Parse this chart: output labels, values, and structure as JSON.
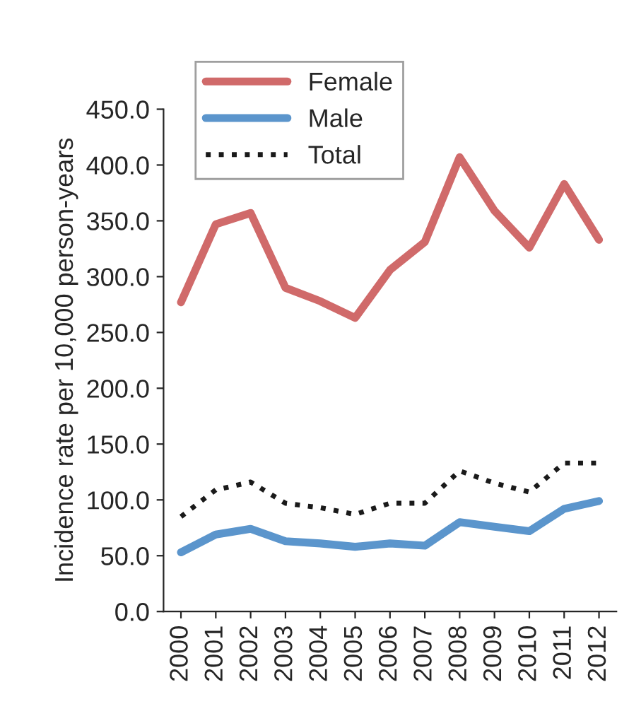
{
  "chart_data": {
    "type": "line",
    "ylabel": "Incidence rate per 10,000 person-years",
    "categories": [
      "2000",
      "2001",
      "2002",
      "2003",
      "2004",
      "2005",
      "2006",
      "2007",
      "2008",
      "2009",
      "2010",
      "2011",
      "2012"
    ],
    "series": [
      {
        "name": "Female",
        "color": "#d06a6a",
        "line_style": "solid",
        "values": [
          277,
          347,
          357,
          290,
          278,
          263,
          306,
          331,
          407,
          359,
          326,
          383,
          333
        ]
      },
      {
        "name": "Male",
        "color": "#5b95cc",
        "line_style": "solid",
        "values": [
          53,
          69,
          74,
          63,
          61,
          58,
          61,
          59,
          80,
          76,
          72,
          92,
          99
        ]
      },
      {
        "name": "Total",
        "color": "#1a1a1a",
        "line_style": "dotted",
        "values": [
          85,
          109,
          116,
          97,
          93,
          87,
          97,
          97,
          126,
          115,
          107,
          133,
          133
        ]
      }
    ],
    "ylim": [
      0,
      450
    ],
    "yticks": [
      {
        "value": 0,
        "label": "0.0"
      },
      {
        "value": 50,
        "label": "50.0"
      },
      {
        "value": 100,
        "label": "100.0"
      },
      {
        "value": 150,
        "label": "150.0"
      },
      {
        "value": 200,
        "label": "200.0"
      },
      {
        "value": 250,
        "label": "250.0"
      },
      {
        "value": 300,
        "label": "300.0"
      },
      {
        "value": 350,
        "label": "350.0"
      },
      {
        "value": 400,
        "label": "400.0"
      },
      {
        "value": 450,
        "label": "450.0"
      }
    ],
    "grid": false,
    "legend": "top"
  }
}
